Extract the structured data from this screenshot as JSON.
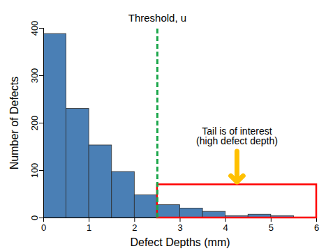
{
  "chart_data": {
    "type": "histogram",
    "x_label": "Defect Depths (mm)",
    "y_label": "Number of Defects",
    "bins": [
      0,
      0.5,
      1,
      1.5,
      2,
      2.5,
      3,
      3.5,
      4,
      4.5,
      5,
      5.5,
      6
    ],
    "values": [
      388,
      230,
      153,
      97,
      48,
      27,
      20,
      13,
      4,
      7,
      4,
      1
    ],
    "color": "#4a7fb5",
    "xlim": [
      0,
      6
    ],
    "xticks": [
      0,
      1,
      2,
      3,
      4,
      5,
      6
    ],
    "ylim": [
      0,
      400
    ],
    "yticks": [
      0,
      100,
      200,
      300,
      400
    ],
    "grid": false,
    "threshold": {
      "value": 2.5,
      "label": "Threshold, u",
      "color": "#1aa64a",
      "line_style": "dashed"
    },
    "tail_box": {
      "x": [
        2.5,
        6
      ],
      "y": [
        0,
        70
      ],
      "color": "#ff0000",
      "label": [
        "Tail is of interest",
        "(high defect depth)"
      ],
      "arrow_color": "#ffc000"
    }
  }
}
